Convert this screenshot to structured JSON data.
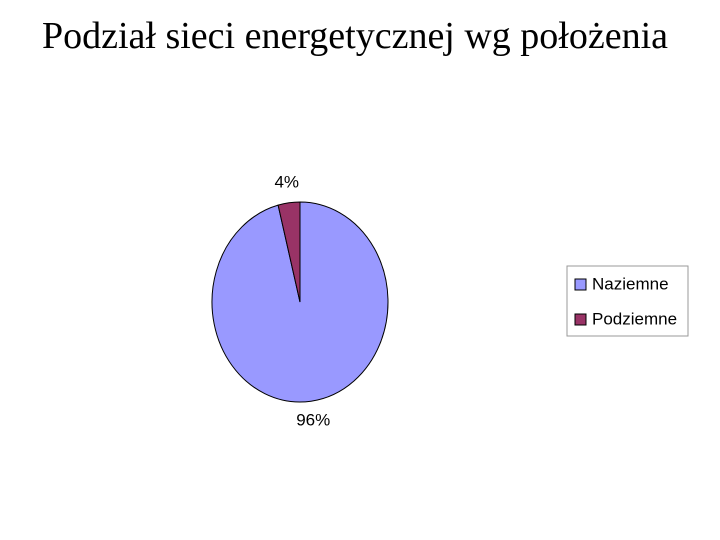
{
  "chart_data": {
    "type": "pie",
    "title": "Podział sieci energetycznej wg położenia",
    "categories": [
      "Naziemne",
      "Podziemne"
    ],
    "values": [
      96,
      4
    ],
    "value_labels": [
      "96%",
      "4%"
    ],
    "colors": [
      "#9999ff",
      "#993366"
    ],
    "legend": "right"
  }
}
